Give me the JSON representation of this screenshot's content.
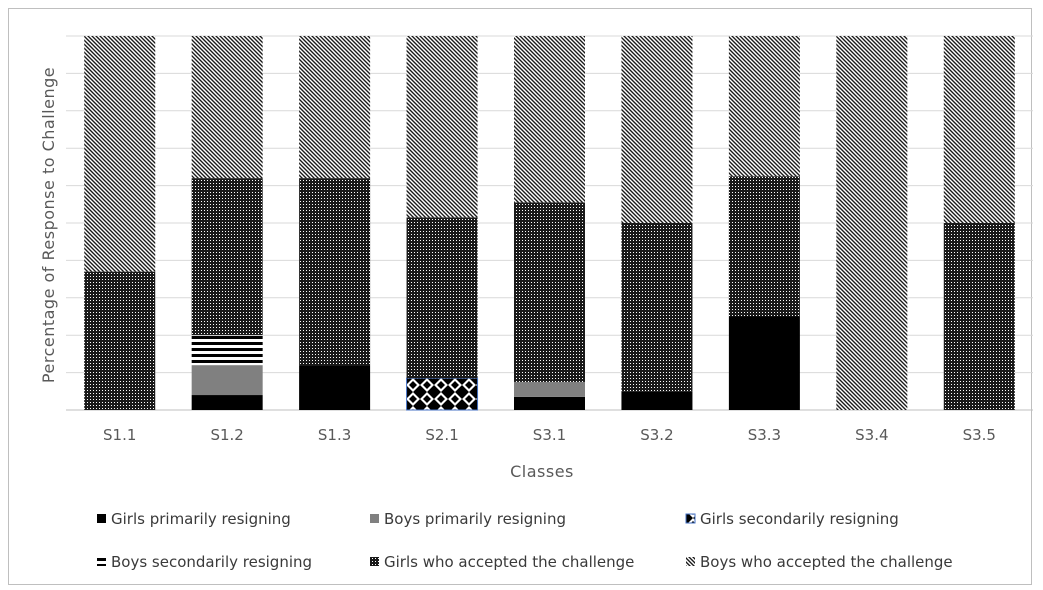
{
  "chart_data": {
    "type": "bar",
    "stacked": true,
    "percent": true,
    "title": "",
    "xlabel": "Classes",
    "ylabel": "Percentage of Response to Challenge",
    "ylim": [
      0,
      100
    ],
    "grid": true,
    "legend_position": "bottom",
    "categories": [
      "S1.1",
      "S1.2",
      "S1.3",
      "S2.1",
      "S3.1",
      "S3.2",
      "S3.3",
      "S3.4",
      "S3.5"
    ],
    "series": [
      {
        "name": "Girls primarily resigning",
        "pattern": "solid-black",
        "values": [
          0,
          4,
          12,
          0,
          3.5,
          5,
          25,
          0,
          0
        ]
      },
      {
        "name": "Boys primarily resigning",
        "pattern": "solid-gray",
        "values": [
          0,
          8,
          0,
          0,
          4,
          0,
          0,
          0,
          0
        ]
      },
      {
        "name": "Girls secondarily resigning",
        "pattern": "checker",
        "values": [
          0,
          0,
          0,
          8.5,
          0,
          0,
          0,
          0,
          0
        ]
      },
      {
        "name": "Boys secondarily resigning",
        "pattern": "horizontal-stripes",
        "values": [
          0,
          8,
          0,
          0,
          0,
          0,
          0,
          0,
          0
        ]
      },
      {
        "name": "Girls who accepted the challenge",
        "pattern": "dots",
        "values": [
          37,
          42,
          50,
          43,
          48,
          45,
          37.5,
          0,
          50
        ]
      },
      {
        "name": "Boys who accepted the challenge",
        "pattern": "diagonal",
        "values": [
          63,
          38,
          38,
          48.5,
          44.5,
          50,
          37.5,
          100,
          50
        ]
      }
    ]
  }
}
